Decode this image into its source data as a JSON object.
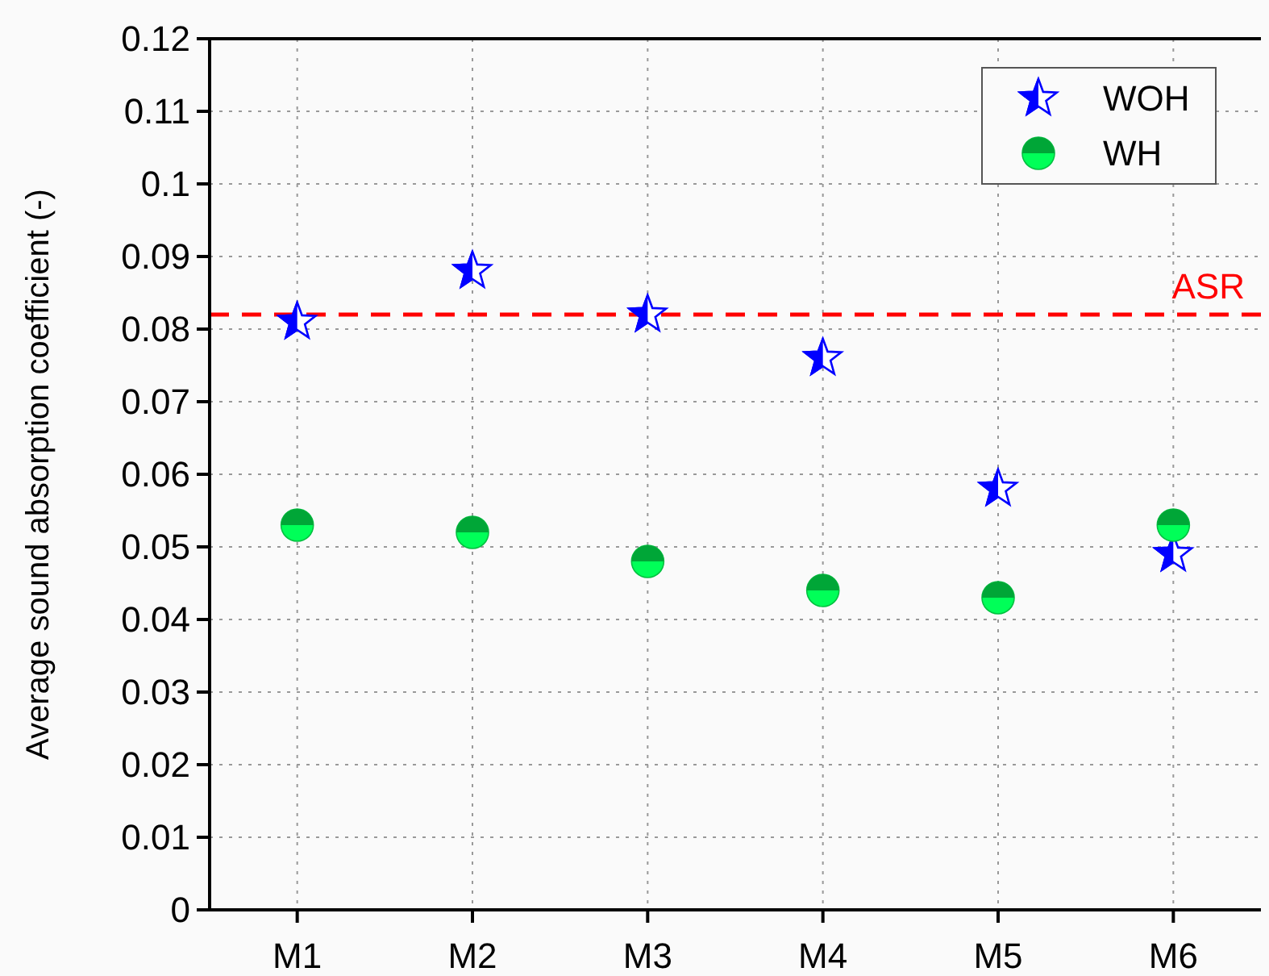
{
  "chart_data": {
    "type": "scatter",
    "ylabel": "Average sound absorption coefficient (-)",
    "categories": [
      "M1",
      "M2",
      "M3",
      "M4",
      "M5",
      "M6"
    ],
    "series": [
      {
        "name": "WOH",
        "color": "#0000ff",
        "marker": "star",
        "values": [
          0.081,
          0.088,
          0.082,
          0.076,
          0.058,
          0.049
        ]
      },
      {
        "name": "WH",
        "color": "#00c040",
        "marker": "circle",
        "values": [
          0.053,
          0.052,
          0.048,
          0.044,
          0.043,
          0.053
        ]
      }
    ],
    "ylim": [
      0,
      0.12
    ],
    "yticks": [
      0,
      0.01,
      0.02,
      0.03,
      0.04,
      0.05,
      0.06,
      0.07,
      0.08,
      0.09,
      0.1,
      0.11,
      0.12
    ],
    "ref_lines": [
      {
        "axis": "y",
        "value": 0.082,
        "label": "ASR",
        "color": "#ff0000",
        "line_style": "dashed"
      }
    ],
    "grid": true,
    "legend": "top right"
  }
}
